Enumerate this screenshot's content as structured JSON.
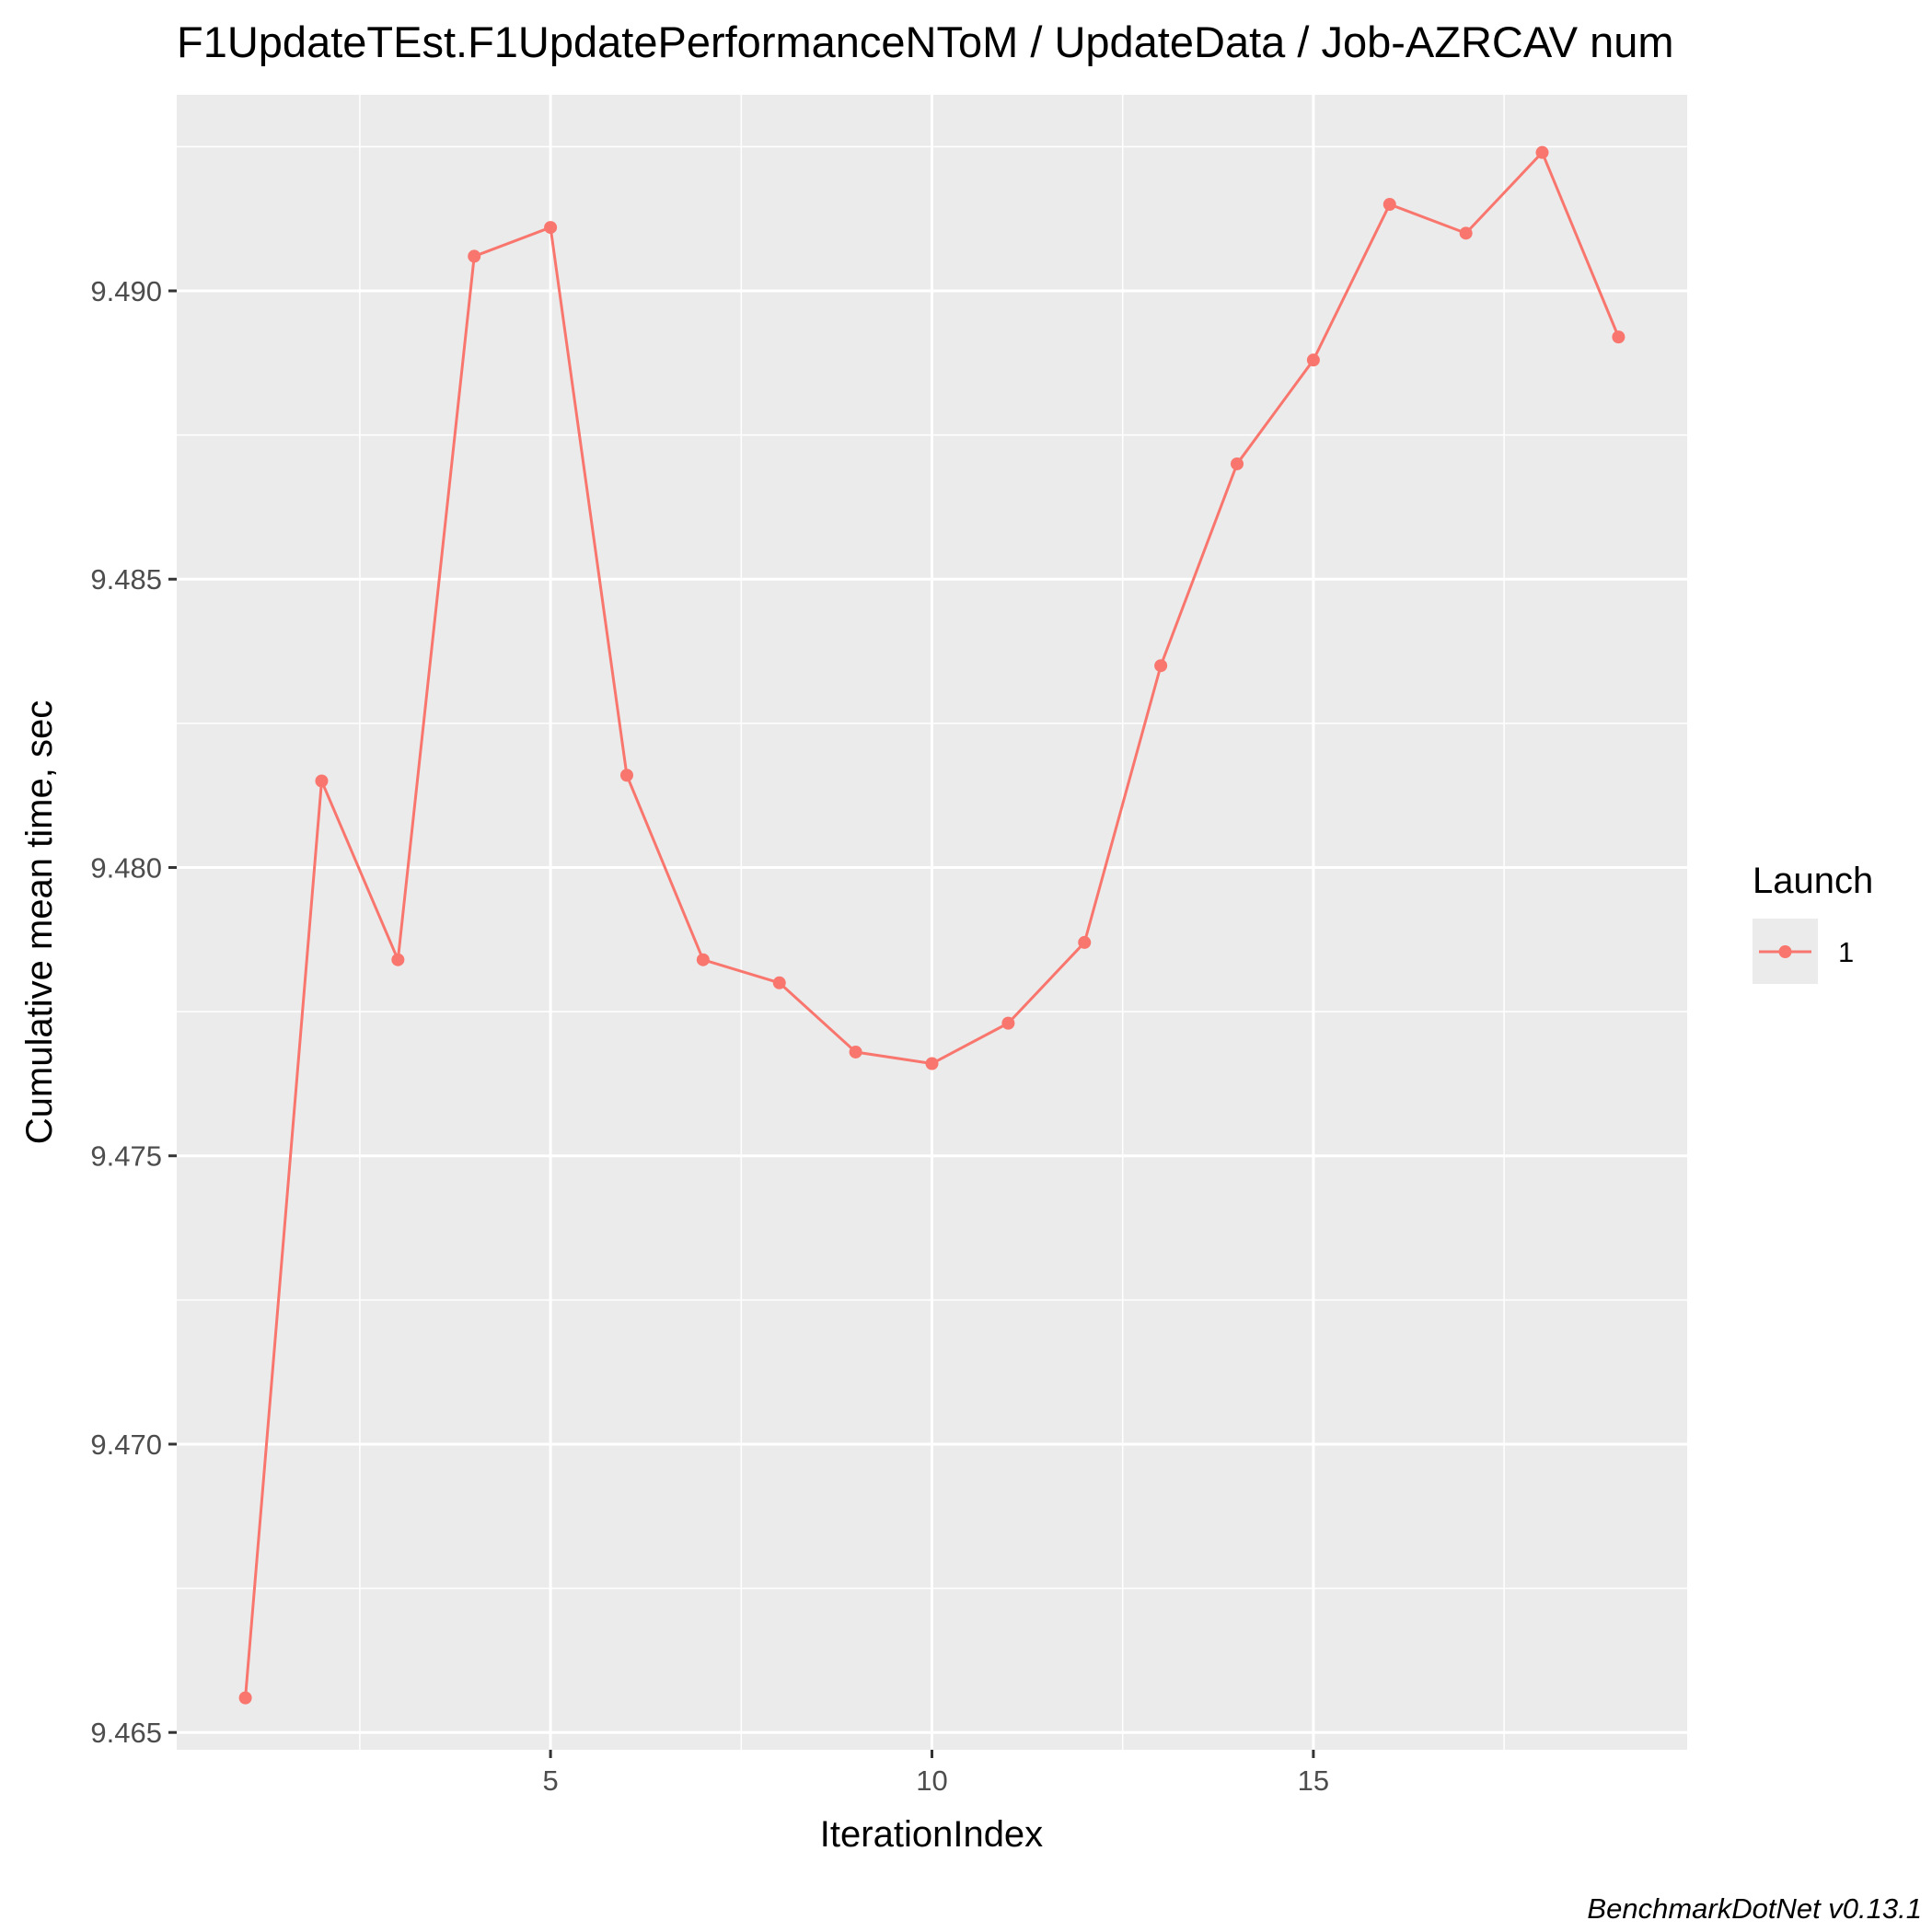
{
  "chart_data": {
    "type": "line",
    "title": "F1UpdateTEst.F1UpdatePerformanceNToM / UpdateData / Job-AZRCAV num",
    "xlabel": "IterationIndex",
    "ylabel": "Cumulative mean time, sec",
    "caption": "BenchmarkDotNet v0.13.1",
    "xlim": [
      0.1,
      19.9
    ],
    "ylim": [
      9.4647,
      9.4934
    ],
    "x_ticks": [
      5,
      10,
      15
    ],
    "x_tick_labels": [
      "5",
      "10",
      "15"
    ],
    "y_ticks": [
      9.465,
      9.47,
      9.475,
      9.48,
      9.485,
      9.49
    ],
    "y_tick_labels": [
      "9.465",
      "9.470",
      "9.475",
      "9.480",
      "9.485",
      "9.490"
    ],
    "grid": true,
    "legend": {
      "title": "Launch",
      "position": "right"
    },
    "series": [
      {
        "name": "1",
        "color": "#F8766D",
        "x": [
          1,
          2,
          3,
          4,
          5,
          6,
          7,
          8,
          9,
          10,
          11,
          12,
          13,
          14,
          15,
          16,
          17,
          18,
          19
        ],
        "y": [
          9.4656,
          9.4815,
          9.4784,
          9.4906,
          9.4911,
          9.4816,
          9.4784,
          9.478,
          9.4768,
          9.4766,
          9.4773,
          9.4787,
          9.4835,
          9.487,
          9.4888,
          9.4915,
          9.491,
          9.4924,
          9.4892
        ]
      }
    ]
  }
}
